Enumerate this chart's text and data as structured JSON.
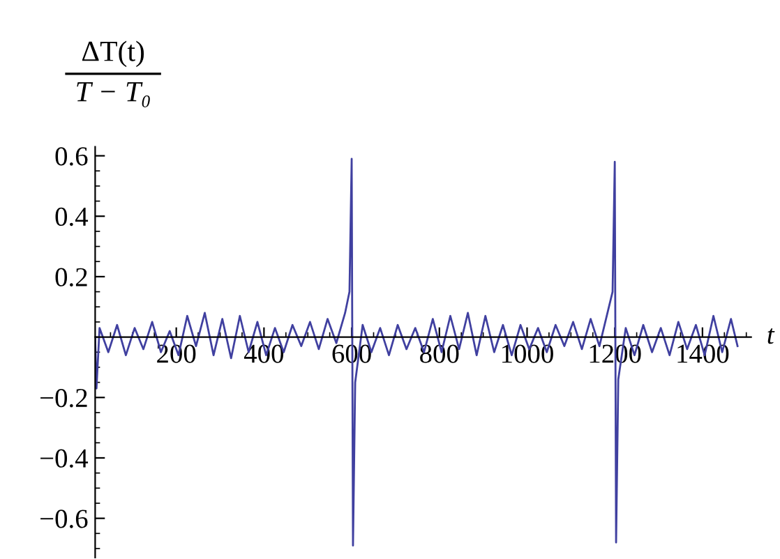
{
  "chart_data": {
    "type": "line",
    "xlabel": "t",
    "ylabel": "ΔT(t)\nT − T₀",
    "x": [
      15,
      18,
      25,
      45,
      65,
      85,
      105,
      125,
      145,
      165,
      185,
      205,
      225,
      245,
      265,
      285,
      305,
      325,
      345,
      365,
      385,
      405,
      425,
      445,
      465,
      485,
      505,
      525,
      545,
      565,
      585,
      595,
      600,
      603,
      608,
      625,
      645,
      665,
      685,
      705,
      725,
      745,
      765,
      785,
      805,
      825,
      845,
      865,
      885,
      905,
      925,
      945,
      965,
      985,
      1005,
      1025,
      1045,
      1065,
      1085,
      1105,
      1125,
      1145,
      1165,
      1185,
      1195,
      1200,
      1203,
      1208,
      1225,
      1245,
      1265,
      1285,
      1305,
      1325,
      1345,
      1365,
      1385,
      1405,
      1425,
      1445,
      1465,
      1480
    ],
    "series": [
      {
        "color": "#4040a0",
        "values": [
          0.0,
          -0.17,
          0.03,
          -0.05,
          0.04,
          -0.06,
          0.03,
          -0.04,
          0.05,
          -0.05,
          0.02,
          -0.06,
          0.07,
          -0.03,
          0.08,
          -0.06,
          0.06,
          -0.07,
          0.07,
          -0.05,
          0.05,
          -0.06,
          0.03,
          -0.05,
          0.04,
          -0.03,
          0.05,
          -0.04,
          0.06,
          -0.02,
          0.08,
          0.15,
          0.59,
          -0.69,
          -0.15,
          0.04,
          -0.05,
          0.03,
          -0.06,
          0.04,
          -0.04,
          0.03,
          -0.05,
          0.06,
          -0.05,
          0.07,
          -0.04,
          0.08,
          -0.06,
          0.07,
          -0.05,
          0.04,
          -0.06,
          0.04,
          -0.04,
          0.03,
          -0.05,
          0.04,
          -0.03,
          0.05,
          -0.04,
          0.06,
          -0.03,
          0.09,
          0.15,
          0.58,
          -0.68,
          -0.14,
          0.03,
          -0.06,
          0.04,
          -0.05,
          0.03,
          -0.06,
          0.05,
          -0.04,
          0.04,
          -0.06,
          0.07,
          -0.05,
          0.06,
          -0.03
        ]
      }
    ],
    "xlim": [
      15,
      1511
    ],
    "ylim": [
      -0.73,
      0.63
    ],
    "xticks": [
      200,
      400,
      600,
      800,
      1000,
      1200,
      1400
    ],
    "yticks": [
      -0.6,
      -0.4,
      -0.2,
      0.2,
      0.4,
      0.6
    ],
    "grid": false,
    "legend": false
  }
}
